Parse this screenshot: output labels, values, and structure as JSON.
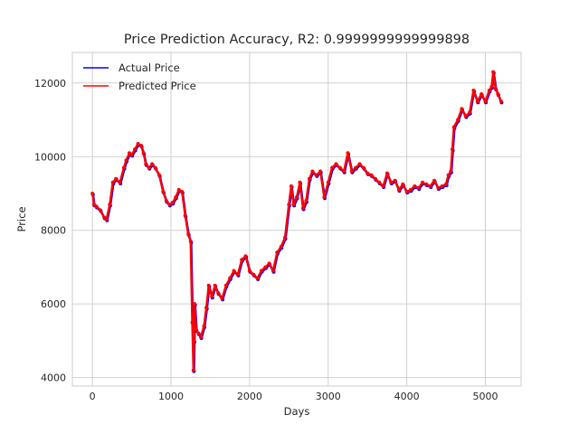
{
  "chart_data": {
    "type": "line",
    "title": "Price Prediction Accuracy, R2: 0.9999999999999898",
    "xlabel": "Days",
    "ylabel": "Price",
    "xlim": [
      -255,
      5455
    ],
    "ylim": [
      3770,
      12830
    ],
    "xticks": [
      0,
      1000,
      2000,
      3000,
      4000,
      5000
    ],
    "yticks": [
      4000,
      6000,
      8000,
      10000,
      12000
    ],
    "grid": true,
    "legend_position": "upper-left",
    "series": [
      {
        "name": "Actual Price",
        "color": "#0000ff",
        "marker": "point",
        "x": [
          0,
          20,
          50,
          100,
          150,
          180,
          220,
          260,
          300,
          350,
          400,
          430,
          470,
          500,
          540,
          580,
          620,
          650,
          680,
          720,
          760,
          800,
          850,
          900,
          940,
          980,
          1020,
          1060,
          1100,
          1140,
          1180,
          1220,
          1250,
          1270,
          1285,
          1292,
          1300,
          1320,
          1350,
          1380,
          1420,
          1450,
          1480,
          1520,
          1560,
          1600,
          1650,
          1700,
          1750,
          1800,
          1850,
          1900,
          1950,
          2000,
          2050,
          2100,
          2150,
          2200,
          2250,
          2300,
          2350,
          2400,
          2450,
          2500,
          2530,
          2560,
          2600,
          2640,
          2680,
          2720,
          2760,
          2800,
          2850,
          2900,
          2950,
          3000,
          3050,
          3100,
          3150,
          3200,
          3250,
          3300,
          3350,
          3400,
          3450,
          3500,
          3550,
          3600,
          3650,
          3700,
          3750,
          3800,
          3850,
          3900,
          3950,
          4000,
          4050,
          4100,
          4150,
          4200,
          4250,
          4300,
          4350,
          4400,
          4450,
          4500,
          4530,
          4560,
          4580,
          4600,
          4650,
          4700,
          4750,
          4800,
          4850,
          4900,
          4950,
          5000,
          5050,
          5080,
          5100,
          5130,
          5160,
          5200
        ],
        "y": [
          9000,
          8700,
          8650,
          8550,
          8350,
          8300,
          8700,
          9300,
          9400,
          9300,
          9700,
          9900,
          10100,
          10050,
          10200,
          10350,
          10300,
          10100,
          9800,
          9700,
          9800,
          9700,
          9500,
          9050,
          8800,
          8700,
          8750,
          8900,
          9100,
          9050,
          8400,
          7900,
          7700,
          5500,
          4200,
          5000,
          6000,
          5300,
          5200,
          5100,
          5400,
          5900,
          6500,
          6200,
          6500,
          6300,
          6150,
          6500,
          6700,
          6900,
          6800,
          7200,
          7300,
          6900,
          6800,
          6700,
          6900,
          7000,
          7100,
          6900,
          7400,
          7550,
          7800,
          8700,
          9200,
          8700,
          8900,
          9300,
          8600,
          8800,
          9400,
          9600,
          9500,
          9600,
          8900,
          9300,
          9700,
          9800,
          9700,
          9600,
          10100,
          9600,
          9700,
          9800,
          9700,
          9550,
          9500,
          9400,
          9300,
          9200,
          9550,
          9300,
          9350,
          9100,
          9250,
          9050,
          9100,
          9200,
          9150,
          9300,
          9250,
          9200,
          9350,
          9150,
          9200,
          9250,
          9500,
          9600,
          10200,
          10800,
          11000,
          11300,
          11100,
          11200,
          11800,
          11500,
          11700,
          11500,
          11800,
          11900,
          12300,
          11850,
          11700,
          11500
        ]
      },
      {
        "name": "Predicted Price",
        "color": "#ff0000",
        "marker": "point"
      }
    ]
  }
}
